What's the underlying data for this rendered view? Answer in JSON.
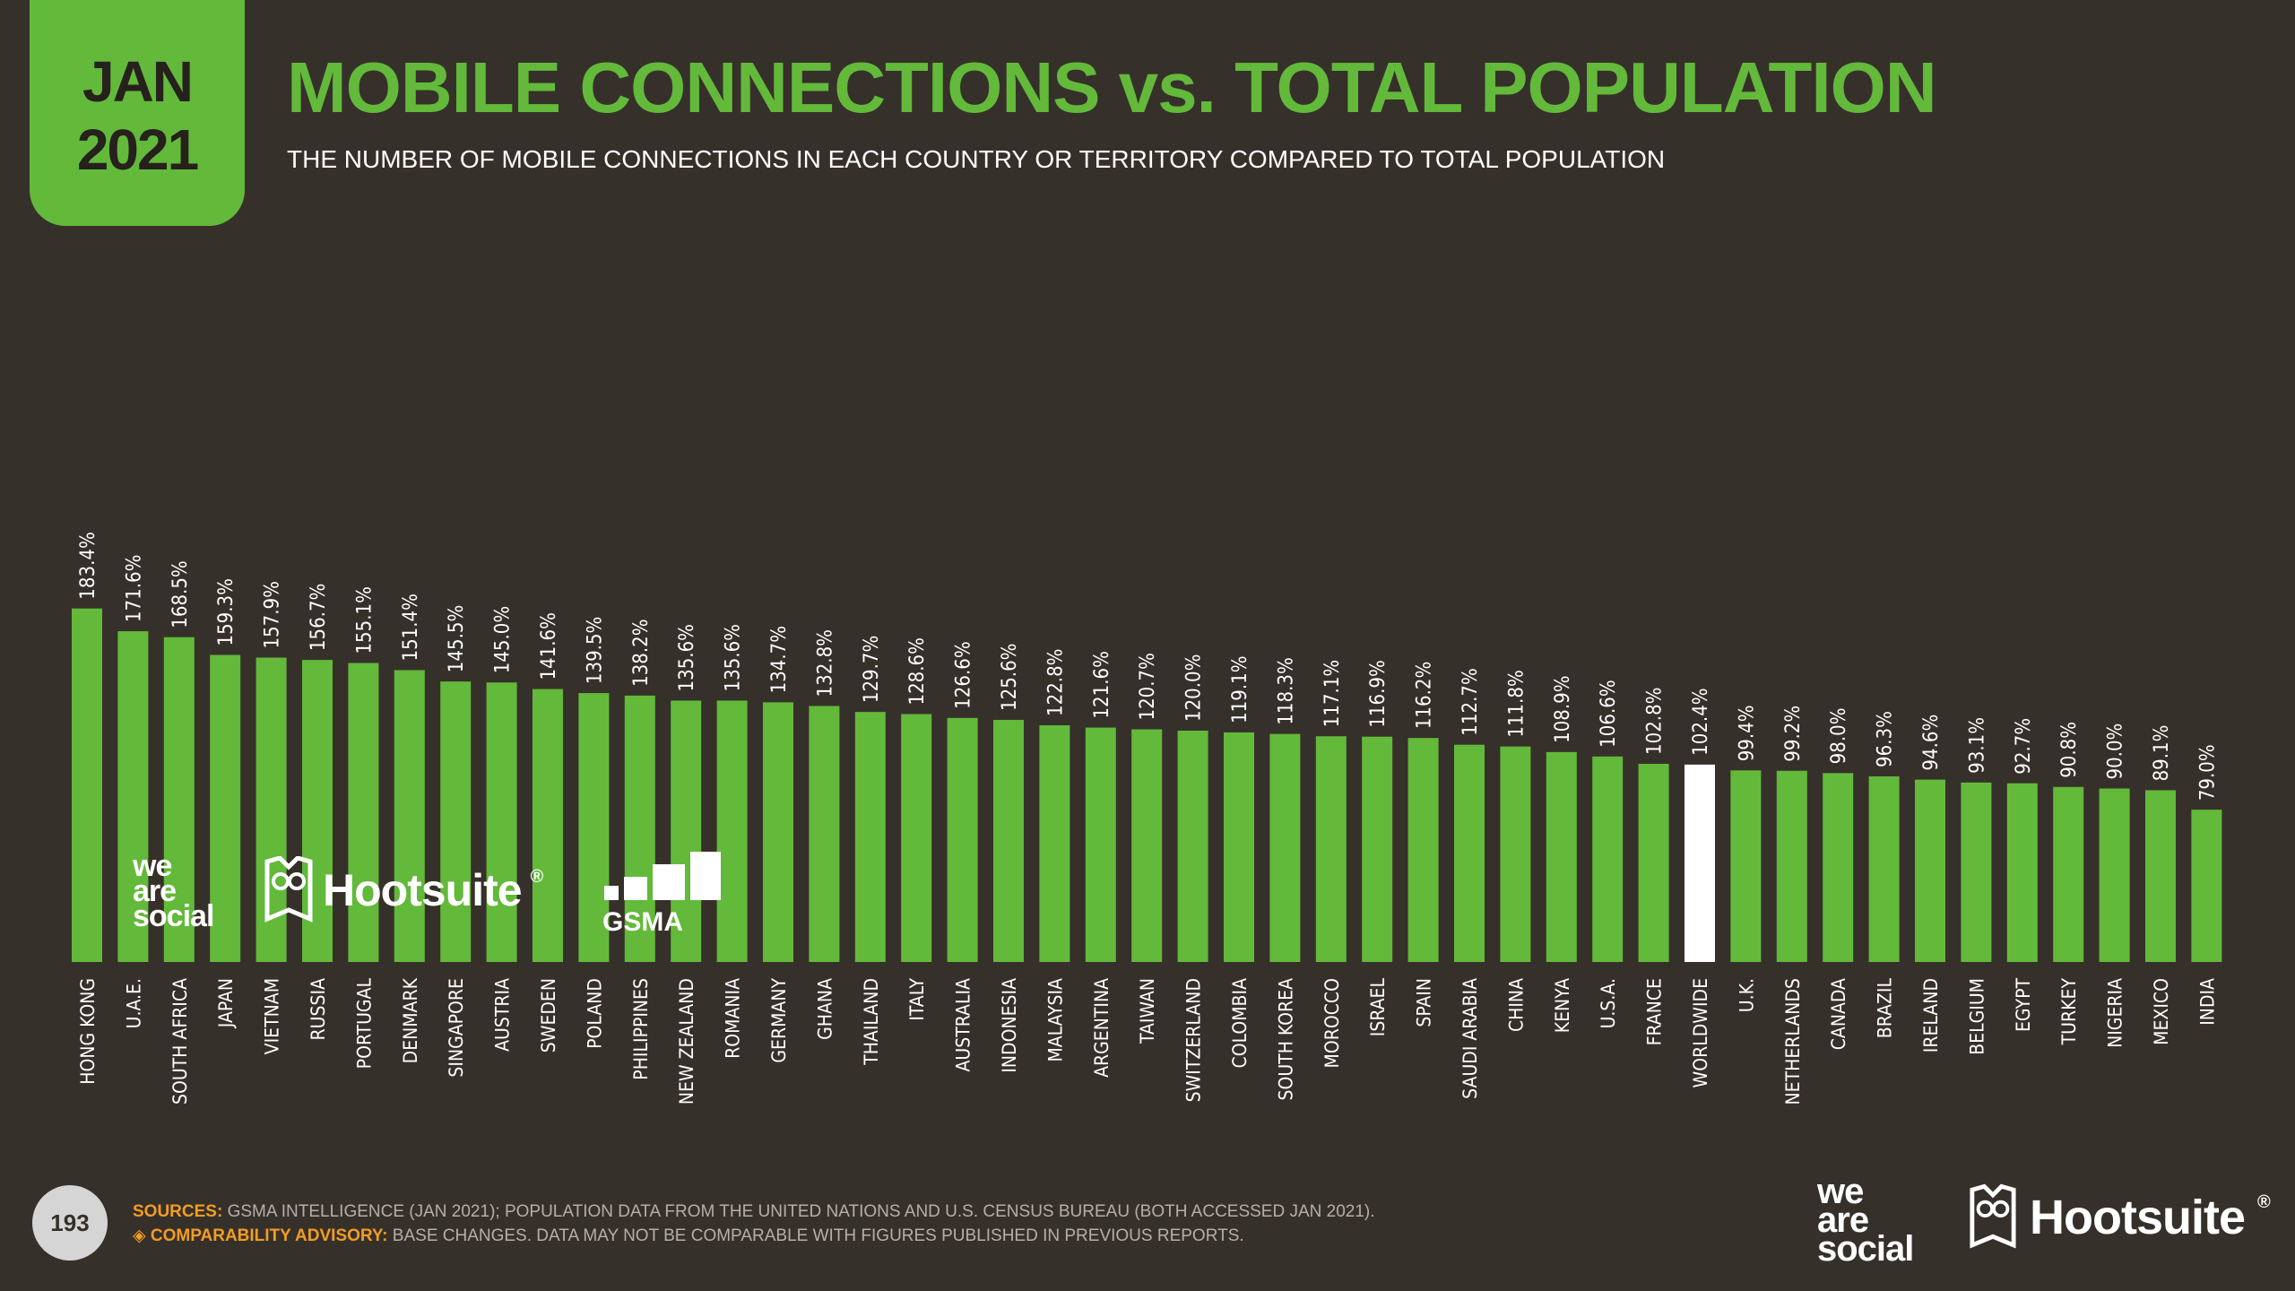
{
  "badge": {
    "month": "JAN",
    "year": "2021"
  },
  "title": "MOBILE CONNECTIONS vs. TOTAL POPULATION",
  "subtitle": "THE NUMBER OF MOBILE CONNECTIONS IN EACH COUNTRY OR TERRITORY COMPARED TO TOTAL POPULATION",
  "colors": {
    "bar": "#63b93a",
    "highlight": "#ffffff",
    "background": "#36302b",
    "accent": "#f29d22"
  },
  "logos": {
    "we_are_social": [
      "we",
      "are",
      "social"
    ],
    "hootsuite": "Hootsuite",
    "registered": "®",
    "gsma": "GSMA"
  },
  "chart_data": {
    "type": "bar",
    "title": "MOBILE CONNECTIONS vs. TOTAL POPULATION",
    "xlabel": "",
    "ylabel": "",
    "unit": "%",
    "ylim": [
      0,
      190
    ],
    "grid": false,
    "highlight": "WORLDWIDE",
    "categories": [
      "HONG KONG",
      "U.A.E.",
      "SOUTH AFRICA",
      "JAPAN",
      "VIETNAM",
      "RUSSIA",
      "PORTUGAL",
      "DENMARK",
      "SINGAPORE",
      "AUSTRIA",
      "SWEDEN",
      "POLAND",
      "PHILIPPINES",
      "NEW ZEALAND",
      "ROMANIA",
      "GERMANY",
      "GHANA",
      "THAILAND",
      "ITALY",
      "AUSTRALIA",
      "INDONESIA",
      "MALAYSIA",
      "ARGENTINA",
      "TAIWAN",
      "SWITZERLAND",
      "COLOMBIA",
      "SOUTH KOREA",
      "MOROCCO",
      "ISRAEL",
      "SPAIN",
      "SAUDI ARABIA",
      "CHINA",
      "KENYA",
      "U.S.A.",
      "FRANCE",
      "WORLDWIDE",
      "U.K.",
      "NETHERLANDS",
      "CANADA",
      "BRAZIL",
      "IRELAND",
      "BELGIUM",
      "EGYPT",
      "TURKEY",
      "NIGERIA",
      "MEXICO",
      "INDIA"
    ],
    "values": [
      183.4,
      171.6,
      168.5,
      159.3,
      157.9,
      156.7,
      155.1,
      151.4,
      145.5,
      145.0,
      141.6,
      139.5,
      138.2,
      135.6,
      135.6,
      134.7,
      132.8,
      129.7,
      128.6,
      126.6,
      125.6,
      122.8,
      121.6,
      120.7,
      120.0,
      119.1,
      118.3,
      117.1,
      116.9,
      116.2,
      112.7,
      111.8,
      108.9,
      106.6,
      102.8,
      102.4,
      99.4,
      99.2,
      98.0,
      96.3,
      94.6,
      93.1,
      92.7,
      90.8,
      90.0,
      89.1,
      79.0
    ]
  },
  "page_number": "193",
  "footer": {
    "sources_label": "SOURCES:",
    "sources_text": "GSMA INTELLIGENCE (JAN 2021); POPULATION DATA FROM THE UNITED NATIONS AND U.S. CENSUS BUREAU (BOTH ACCESSED JAN 2021).",
    "advisory_icon": "◈",
    "advisory_label": "COMPARABILITY ADVISORY:",
    "advisory_text": "BASE CHANGES. DATA MAY NOT BE COMPARABLE WITH FIGURES PUBLISHED IN PREVIOUS REPORTS."
  }
}
